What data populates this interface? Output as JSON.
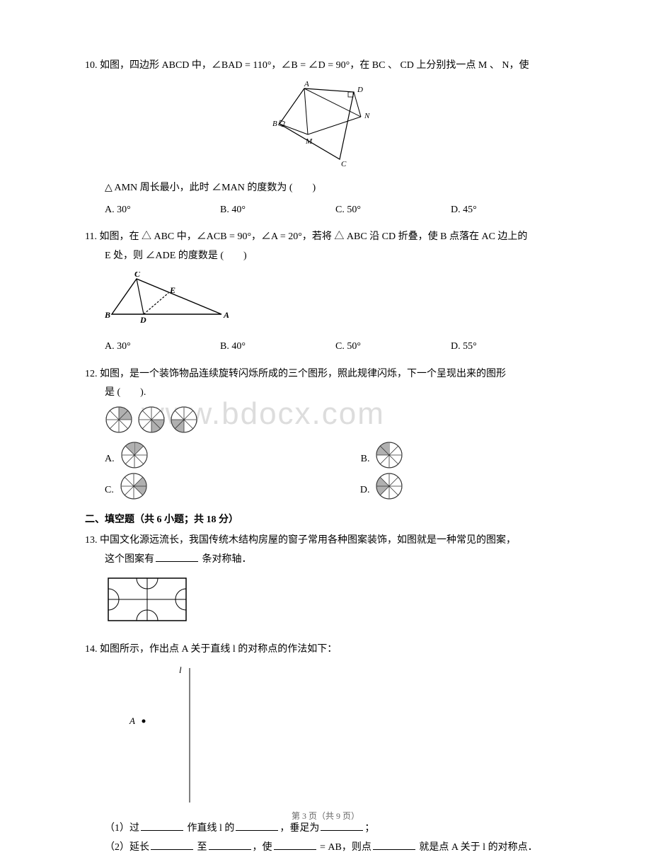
{
  "q10": {
    "num": "10.",
    "text1": "如图，四边形 ABCD 中，∠BAD = 110°，∠B = ∠D = 90°，在 BC 、 CD 上分别找一点 M 、 N，使",
    "text2": "△ AMN 周长最小，此时 ∠MAN 的度数为 (　　)",
    "choices": {
      "a": "A. 30°",
      "b": "B. 40°",
      "c": "C. 50°",
      "d": "D. 45°"
    },
    "figure": {
      "labels": {
        "A": "A",
        "B": "B",
        "C": "C",
        "D": "D",
        "M": "M",
        "N": "N"
      },
      "stroke": "#000000"
    }
  },
  "q11": {
    "num": "11.",
    "text1": "如图，在 △ ABC 中，∠ACB = 90°，∠A = 20°，若将 △ ABC 沿 CD 折叠，使 B 点落在 AC 边上的",
    "text2": "E 处，则 ∠ADE 的度数是 (　　)",
    "choices": {
      "a": "A. 30°",
      "b": "B. 40°",
      "c": "C. 50°",
      "d": "D. 55°"
    },
    "figure": {
      "labels": {
        "A": "A",
        "B": "B",
        "C": "C",
        "D": "D",
        "E": "E"
      },
      "stroke": "#000000"
    }
  },
  "q12": {
    "num": "12.",
    "text1": "如图，是一个装饰物品连续旋转闪烁所成的三个图形，照此规律闪烁，下一个呈现出来的图形",
    "text2": "是 (　　).",
    "choice_labels": {
      "a": "A.",
      "b": "B.",
      "c": "C.",
      "d": "D."
    },
    "wheel": {
      "radius": 18,
      "sectors": 8,
      "stroke": "#333333",
      "fill": "#b0b0b0",
      "bg": "#ffffff"
    },
    "sequence_shaded": [
      [
        0,
        1
      ],
      [
        2,
        3
      ],
      [
        4,
        5
      ]
    ],
    "options_shaded": {
      "a": [
        7,
        0
      ],
      "b": [
        6,
        7
      ],
      "c": [
        1,
        2
      ],
      "d": [
        5,
        6
      ]
    }
  },
  "section2": {
    "title": "二、填空题（共 6 小题；共 18 分）"
  },
  "q13": {
    "num": "13.",
    "text1": "中国文化源远流长，我国传统木结构房屋的窗子常用各种图案装饰，如图就是一种常见的图案，",
    "text2_a": "这个图案有",
    "text2_b": " 条对称轴．",
    "figure": {
      "stroke": "#000000"
    }
  },
  "q14": {
    "num": "14.",
    "text": "如图所示，作出点 A 关于直线 l 的对称点的作法如下：",
    "labels": {
      "l": "l",
      "A": "A"
    },
    "sub1_a": "（1）过",
    "sub1_b": " 作直线 l 的",
    "sub1_c": "，垂足为",
    "sub1_d": "；",
    "sub2_a": "（2）延长",
    "sub2_b": " 至",
    "sub2_c": "，使",
    "sub2_d": " = AB，则点",
    "sub2_e": " 就是点 A 关于 l 的对称点．"
  },
  "footer": {
    "text": "第 3 页（共 9 页）"
  },
  "watermark": "www.bdocx.com"
}
